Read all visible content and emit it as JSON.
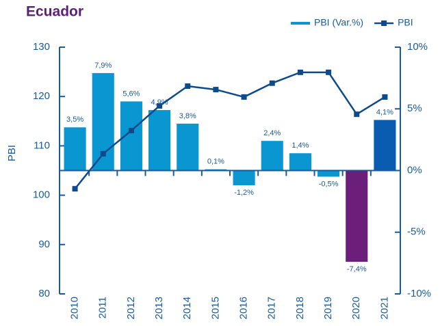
{
  "chart_data": {
    "type": "combo",
    "title": "Ecuador",
    "y_label": "PBI",
    "categories": [
      "2010",
      "2011",
      "2012",
      "2013",
      "2014",
      "2015",
      "2016",
      "2017",
      "2018",
      "2019",
      "2020",
      "2021"
    ],
    "series": [
      {
        "name": "PBI (Var.%)",
        "type": "bar",
        "axis": "y2",
        "color": "#0a96d0",
        "colors": [
          "#0a96d0",
          "#0a96d0",
          "#0a96d0",
          "#0a96d0",
          "#0a96d0",
          "#0a96d0",
          "#0a96d0",
          "#0a96d0",
          "#0a96d0",
          "#0a96d0",
          "#6b1f7a",
          "#0a5cb0"
        ],
        "values": [
          3.5,
          7.9,
          5.6,
          4.9,
          3.8,
          0.1,
          -1.2,
          2.4,
          1.4,
          -0.5,
          -7.4,
          4.1
        ],
        "value_labels": [
          "3,5%",
          "7,9%",
          "5,6%",
          "4,9%",
          "3,8%",
          "0,1%",
          "-1,2%",
          "2,4%",
          "1,4%",
          "-0,5%",
          "-7,4%",
          "4,1%"
        ]
      },
      {
        "name": "PBI",
        "type": "line",
        "color": "#0d4a8c",
        "values": [
          101.3,
          108.4,
          113.1,
          118.1,
          122.1,
          121.4,
          119.9,
          122.7,
          124.9,
          124.9,
          116.4,
          119.9
        ]
      }
    ],
    "ylim": [
      80,
      130
    ],
    "yticks": [
      80,
      90,
      100,
      110,
      120,
      130
    ],
    "y2lim": [
      -10,
      10
    ],
    "y2ticks": [
      {
        "value": -10,
        "label": "-10%"
      },
      {
        "value": -5,
        "label": "-5%"
      },
      {
        "value": 0,
        "label": "0%"
      },
      {
        "value": 5,
        "label": "5%"
      },
      {
        "value": 10,
        "label": "10%"
      }
    ]
  }
}
